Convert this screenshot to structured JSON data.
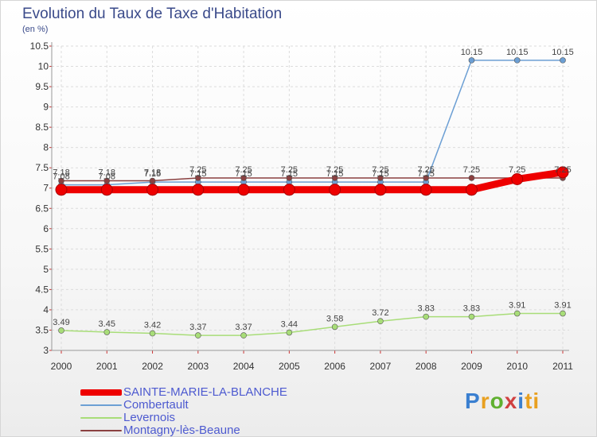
{
  "title": "Evolution du Taux de Taxe d'Habitation",
  "subtitle": "(en %)",
  "logo": {
    "text": "Proxiti",
    "letters": [
      "P",
      "r",
      "o",
      "x",
      "i",
      "ti"
    ]
  },
  "chart_data": {
    "type": "line",
    "title": "Evolution du Taux de Taxe d'Habitation",
    "ylabel": "(en %)",
    "xlabel": "",
    "x": [
      "2000",
      "2001",
      "2002",
      "2003",
      "2004",
      "2005",
      "2006",
      "2007",
      "2008",
      "2009",
      "2010",
      "2011"
    ],
    "ylim": [
      3,
      10.5
    ],
    "yticks": [
      "3",
      "3.5",
      "4",
      "4.5",
      "5",
      "5.5",
      "6",
      "6.5",
      "7",
      "7.5",
      "8",
      "8.5",
      "9",
      "9.5",
      "10",
      "10.5"
    ],
    "grid": true,
    "legend": "bottom-left",
    "series": [
      {
        "name": "SAINTE-MARIE-LA-BLANCHE",
        "color": "#ee0000",
        "width": 9,
        "marker": 7,
        "values": [
          6.96,
          6.96,
          6.96,
          6.96,
          6.96,
          6.96,
          6.96,
          6.96,
          6.96,
          6.96,
          7.22,
          7.39
        ],
        "labels": [
          "",
          "",
          "",
          "",
          "",
          "",
          "",
          "",
          "",
          "",
          "",
          ""
        ]
      },
      {
        "name": "Combertault",
        "color": "#6c9fd4",
        "width": 1.5,
        "marker": 3.5,
        "values": [
          7.08,
          7.08,
          7.15,
          7.15,
          7.15,
          7.15,
          7.15,
          7.15,
          7.15,
          10.15,
          10.15,
          10.15
        ],
        "labels": [
          "7.08",
          "7.08",
          "7.15",
          "7.15",
          "7.15",
          "7.15",
          "7.15",
          "7.15",
          "7.15",
          "10.15",
          "10.15",
          "10.15"
        ]
      },
      {
        "name": "Levernois",
        "color": "#a8dd78",
        "width": 1.5,
        "marker": 3.5,
        "values": [
          3.49,
          3.45,
          3.42,
          3.37,
          3.37,
          3.44,
          3.58,
          3.72,
          3.83,
          3.83,
          3.91,
          3.91
        ],
        "labels": [
          "3.49",
          "3.45",
          "3.42",
          "3.37",
          "3.37",
          "3.44",
          "3.58",
          "3.72",
          "3.83",
          "3.83",
          "3.91",
          "3.91"
        ]
      },
      {
        "name": "Montagny-lès-Beaune",
        "color": "#8a4040",
        "width": 1.5,
        "marker": 3.5,
        "values": [
          7.18,
          7.18,
          7.18,
          7.25,
          7.25,
          7.25,
          7.25,
          7.25,
          7.25,
          7.25,
          7.25,
          7.25
        ],
        "labels": [
          "7.18",
          "7.18",
          "7.18",
          "7.25",
          "7.25",
          "7.25",
          "7.25",
          "7.25",
          "7.25",
          "7.25",
          "7.25",
          "7.25"
        ]
      }
    ]
  }
}
